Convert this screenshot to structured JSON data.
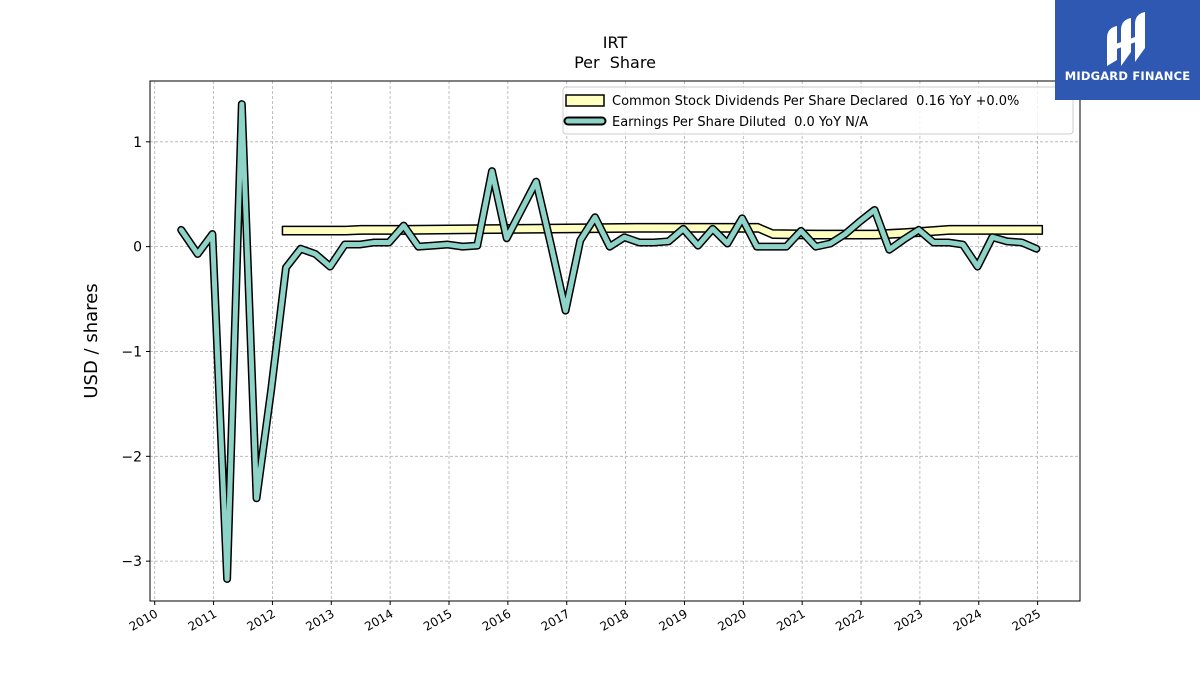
{
  "brand": {
    "name": "MIDGARD FINANCE",
    "bg_color": "#2f58b3"
  },
  "chart_data": {
    "type": "line",
    "title": "IRT",
    "subtitle": "Per  Share",
    "ylabel": "USD / shares",
    "xlabel": "",
    "xlim": [
      2009.92,
      2025.72
    ],
    "ylim": [
      -3.38,
      1.58
    ],
    "x_ticks": [
      2010,
      2011,
      2012,
      2013,
      2014,
      2015,
      2016,
      2017,
      2018,
      2019,
      2020,
      2021,
      2022,
      2023,
      2024,
      2025
    ],
    "y_ticks": [
      1,
      0,
      -1,
      -2,
      -3
    ],
    "y_tick_labels": [
      "1",
      "0",
      "−1",
      "−2",
      "−3"
    ],
    "grid": true,
    "legend_position": "top-right",
    "series": [
      {
        "name": "Common Stock Dividends Per Share Declared  0.16 YoY +0.0%",
        "style": "band",
        "color": "#ffffc0",
        "x": [
          2012.17,
          2013.25,
          2013.5,
          2014.25,
          2015.25,
          2016.25,
          2017.25,
          2018.25,
          2019.25,
          2019.75,
          2020.25,
          2020.5,
          2021.25,
          2022.25,
          2022.75,
          2023.5,
          2024.25,
          2025.08
        ],
        "values": [
          0.153,
          0.153,
          0.16,
          0.16,
          0.165,
          0.17,
          0.175,
          0.18,
          0.18,
          0.18,
          0.18,
          0.12,
          0.115,
          0.115,
          0.13,
          0.16,
          0.16,
          0.16
        ]
      },
      {
        "name": "Earnings Per Share Diluted  0.0 YoY N/A",
        "style": "line",
        "color": "#8dd3c7",
        "x": [
          2010.45,
          2010.73,
          2010.98,
          2011.23,
          2011.48,
          2011.73,
          2011.98,
          2012.23,
          2012.48,
          2012.73,
          2012.98,
          2013.23,
          2013.48,
          2013.73,
          2013.98,
          2014.23,
          2014.48,
          2014.73,
          2014.98,
          2015.23,
          2015.48,
          2015.73,
          2015.98,
          2016.23,
          2016.48,
          2016.73,
          2016.98,
          2017.23,
          2017.48,
          2017.73,
          2017.98,
          2018.23,
          2018.48,
          2018.73,
          2018.98,
          2019.23,
          2019.48,
          2019.73,
          2019.98,
          2020.23,
          2020.48,
          2020.73,
          2020.98,
          2021.23,
          2021.48,
          2021.73,
          2021.98,
          2022.23,
          2022.48,
          2022.73,
          2022.98,
          2023.23,
          2023.48,
          2023.73,
          2023.98,
          2024.23,
          2024.48,
          2024.73,
          2024.98
        ],
        "values": [
          0.16,
          -0.07,
          0.12,
          -3.17,
          1.36,
          -2.4,
          -1.36,
          -0.2,
          -0.02,
          -0.07,
          -0.19,
          0.02,
          0.02,
          0.04,
          0.04,
          0.2,
          0.0,
          0.01,
          0.02,
          0.0,
          0.01,
          0.72,
          0.08,
          0.35,
          0.62,
          0.02,
          -0.61,
          0.06,
          0.28,
          0.0,
          0.09,
          0.04,
          0.04,
          0.05,
          0.17,
          0.01,
          0.17,
          0.03,
          0.27,
          0.0,
          0.0,
          0.0,
          0.15,
          0.0,
          0.03,
          0.12,
          0.24,
          0.35,
          -0.03,
          0.07,
          0.16,
          0.04,
          0.04,
          0.02,
          -0.19,
          0.09,
          0.05,
          0.04,
          -0.02
        ]
      }
    ]
  }
}
